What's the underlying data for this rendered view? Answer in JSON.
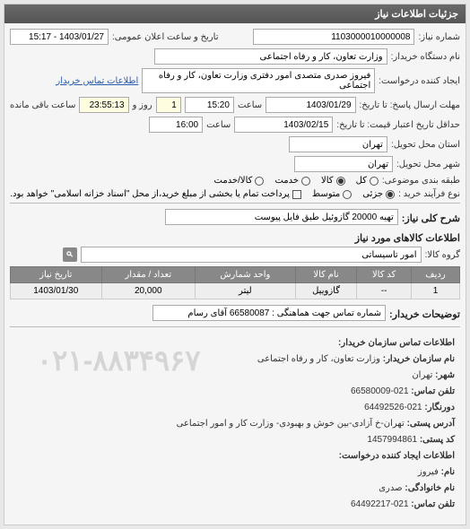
{
  "panel_title": "جزئیات اطلاعات نیاز",
  "header": {
    "need_number_label": "شماره نیاز:",
    "need_number": "1103000010000008",
    "announce_label": "تاریخ و ساعت اعلان عمومی:",
    "announce_value": "1403/01/27 - 15:17",
    "buyer_org_label": "نام دستگاه خریدار:",
    "buyer_org": "وزارت تعاون، کار و رفاه اجتماعی",
    "requester_label": "ایجاد کننده درخواست:",
    "requester": "فیروز صدری متصدی امور دفتری وزارت تعاون، کار و رفاه اجتماعی",
    "contact_link": "اطلاعات تماس خریدار",
    "deadline_label": "مهلت ارسال پاسخ: تا تاریخ:",
    "deadline_date": "1403/01/29",
    "time_label": "ساعت",
    "deadline_time": "15:20",
    "remain_day": "1",
    "remain_day_label": "روز و",
    "remain_time": "23:55:13",
    "remain_suffix": "ساعت باقی مانده",
    "validity_label": "حداقل تاریخ اعتبار قیمت: تا تاریخ:",
    "validity_date": "1403/02/15",
    "validity_time": "16:00",
    "delivery_province_label": "استان محل تحویل:",
    "delivery_province": "تهران",
    "delivery_city_label": "شهر محل تحویل:",
    "delivery_city": "تهران",
    "category_label": "طبقه بندی موضوعی:",
    "cat_all": "کل",
    "cat_goods": "کالا",
    "cat_service": "خدمت",
    "cat_goods_service": "کالا/خدمت",
    "purchase_type_label": "نوع فرآیند خرید :",
    "pt_small": "جزئی",
    "pt_medium": "متوسط",
    "pt_note": "پرداخت تمام یا بخشی از مبلغ خرید،از محل \"اسناد خزانه اسلامی\" خواهد بود."
  },
  "need": {
    "title_label": "شرح کلی نیاز:",
    "title": "تهیه 20000 گازوئیل طبق فایل پیوست",
    "goods_info_title": "اطلاعات کالاهای مورد نیاز",
    "group_label": "گروه کالا:",
    "group": "امور تاسیساتی"
  },
  "table": {
    "headers": [
      "ردیف",
      "کد کالا",
      "نام کالا",
      "واحد شمارش",
      "تعداد / مقدار",
      "تاریخ نیاز"
    ],
    "rows": [
      [
        "1",
        "--",
        "گازوییل",
        "لیتر",
        "20,000",
        "1403/01/30"
      ]
    ]
  },
  "buyer_notes": {
    "label": "توضیحات خریدار:",
    "text": "شماره تماس جهت هماهنگی : 66580087 آقای رسام"
  },
  "contact": {
    "section1_title": "اطلاعات تماس سازمان خریدار:",
    "org_label": "نام سازمان خریدار:",
    "org": "وزارت تعاون، کار و رفاه اجتماعی",
    "city_label": "شهر:",
    "city": "تهران",
    "phone_label": "تلفن تماس:",
    "phone": "021-66580009",
    "fax_label": "دورنگار:",
    "fax": "021-64492526",
    "address_label": "آدرس پستی:",
    "address": "تهران-خ آزادی-بین خوش و بهبودی- وزارت کار و امور اجتماعی",
    "postal_label": "کد پستی:",
    "postal": "1457994861",
    "section2_title": "اطلاعات ایجاد کننده درخواست:",
    "name_label": "نام:",
    "name": "فیروز",
    "family_label": "نام خانوادگی:",
    "family": "صدری",
    "phone2_label": "تلفن تماس:",
    "phone2": "021-64492217",
    "watermark": "۰۲۱-۸۸۳۴۹۶۷"
  }
}
